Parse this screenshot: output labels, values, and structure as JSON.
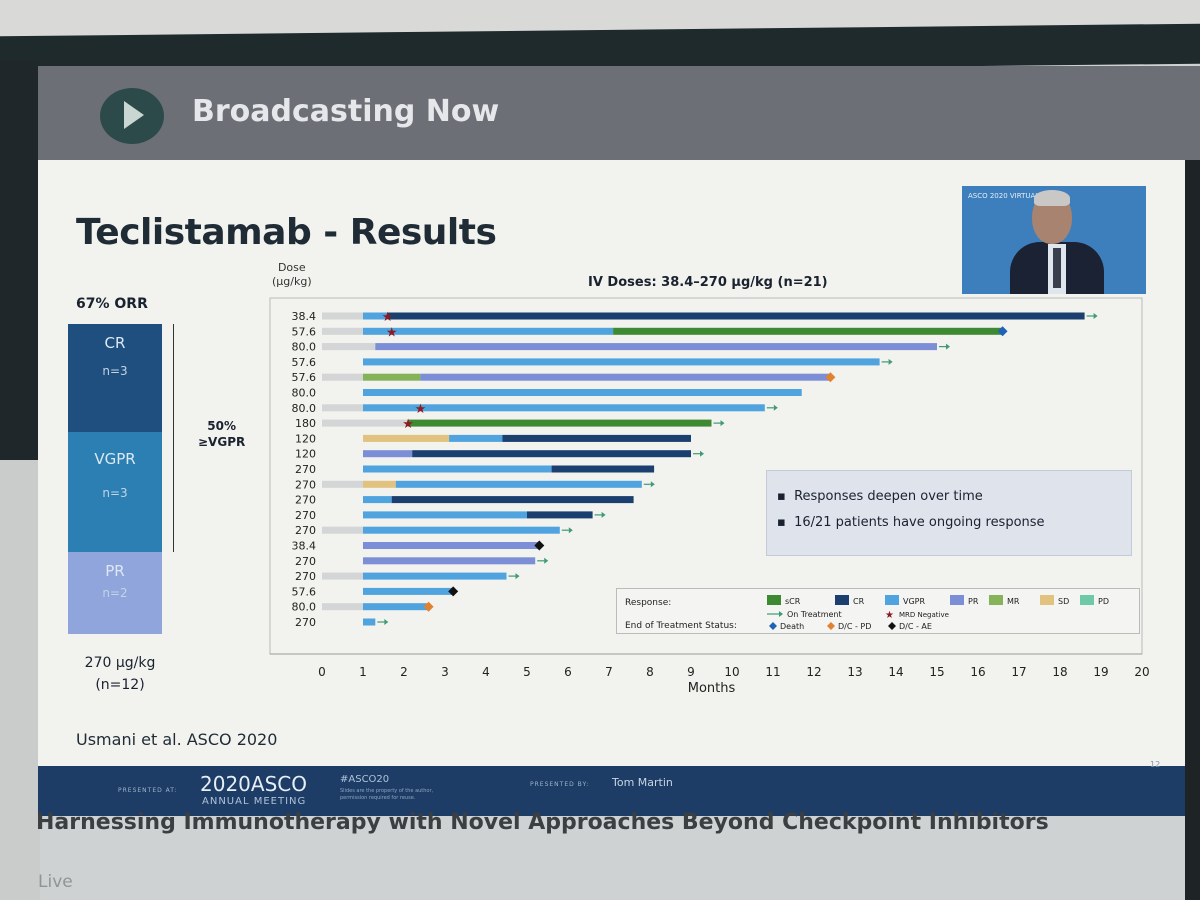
{
  "header": {
    "broadcast_label": "Broadcasting Now"
  },
  "slide": {
    "title": "Teclistamab -  Results",
    "orr": {
      "label": "67% ORR",
      "segments": [
        {
          "label": "CR",
          "n": "n=3"
        },
        {
          "label": "VGPR",
          "n": "n=3"
        },
        {
          "label": "PR",
          "n": "n=2"
        }
      ],
      "vgpr_line1": "50%",
      "vgpr_line2": "≥VGPR",
      "dose_line1": "270 µg/kg",
      "dose_line2": "(n=12)"
    },
    "chart_header": {
      "dose_line1": "Dose",
      "dose_line2": "(µg/kg)",
      "subtitle": "IV Doses: 38.4–270 µg/kg (n=21)"
    },
    "callout": [
      "Responses deepen over time",
      "16/21 patients have ongoing response"
    ],
    "legend": {
      "response_label": "Response:",
      "end_label": "End of Treatment Status:",
      "response_items": [
        {
          "label": "sCR",
          "color": "#3e8a33"
        },
        {
          "label": "CR",
          "color": "#1b3f6e"
        },
        {
          "label": "VGPR",
          "color": "#4fa3df"
        },
        {
          "label": "PR",
          "color": "#7b8ed6"
        },
        {
          "label": "MR",
          "color": "#86b35a"
        },
        {
          "label": "SD",
          "color": "#e1c27e"
        },
        {
          "label": "PD",
          "color": "#6ec9a8"
        }
      ],
      "on_treatment": "On Treatment",
      "mrd_negative": "MRD Negative",
      "death": "Death",
      "dc_pd": "D/C - PD",
      "dc_ae": "D/C - AE"
    },
    "citation": "Usmani et al. ASCO 2020",
    "presenter_logo": "ASCO 2020 VIRTUAL"
  },
  "chart_data": {
    "type": "swimmer",
    "xlabel": "Months",
    "ylabel": "Dose (µg/kg)",
    "xlim": [
      0,
      20
    ],
    "x_ticks": [
      0,
      1,
      2,
      3,
      4,
      5,
      6,
      7,
      8,
      9,
      10,
      11,
      12,
      13,
      14,
      15,
      16,
      17,
      18,
      19,
      20
    ],
    "rows": [
      {
        "dose": "38.4",
        "segments": [
          [
            "gray",
            0,
            1
          ],
          [
            "VGPR",
            1,
            1.6
          ],
          [
            "CR",
            1.6,
            18.6
          ]
        ],
        "mrd": 1.6,
        "end": "ongoing"
      },
      {
        "dose": "57.6",
        "segments": [
          [
            "gray",
            0,
            1
          ],
          [
            "VGPR",
            1,
            7.1
          ],
          [
            "sCR",
            7.1,
            16.6
          ]
        ],
        "mrd": 1.7,
        "end": "death"
      },
      {
        "dose": "80.0",
        "segments": [
          [
            "gray",
            0,
            1.3
          ],
          [
            "PR",
            1.3,
            15.0
          ]
        ],
        "end": "ongoing"
      },
      {
        "dose": "57.6",
        "segments": [
          [
            "VGPR",
            1,
            13.6
          ]
        ],
        "end": "ongoing"
      },
      {
        "dose": "57.6",
        "segments": [
          [
            "gray",
            0,
            1
          ],
          [
            "MR",
            1,
            2.4
          ],
          [
            "PR",
            2.4,
            12.4
          ]
        ],
        "end": "dc_pd"
      },
      {
        "dose": "80.0",
        "segments": [
          [
            "VGPR",
            1,
            11.7
          ]
        ],
        "end": "none"
      },
      {
        "dose": "80.0",
        "segments": [
          [
            "gray",
            0,
            1
          ],
          [
            "VGPR",
            1,
            10.8
          ]
        ],
        "mrd": 2.4,
        "end": "ongoing"
      },
      {
        "dose": "180",
        "segments": [
          [
            "gray",
            0,
            2.1
          ],
          [
            "sCR",
            2.1,
            9.5
          ]
        ],
        "mrd": 2.1,
        "end": "ongoing"
      },
      {
        "dose": "120",
        "segments": [
          [
            "SD",
            1,
            3.1
          ],
          [
            "VGPR",
            3.1,
            4.4
          ],
          [
            "CR",
            4.4,
            9.0
          ]
        ],
        "end": "none"
      },
      {
        "dose": "120",
        "segments": [
          [
            "PR",
            1,
            2.2
          ],
          [
            "CR",
            2.2,
            9.0
          ]
        ],
        "end": "ongoing"
      },
      {
        "dose": "270",
        "segments": [
          [
            "VGPR",
            1,
            5.6
          ],
          [
            "CR",
            5.6,
            8.1
          ]
        ],
        "end": "none"
      },
      {
        "dose": "270",
        "segments": [
          [
            "gray",
            0,
            1
          ],
          [
            "SD",
            1,
            1.8
          ],
          [
            "VGPR",
            1.8,
            7.8
          ]
        ],
        "end": "ongoing"
      },
      {
        "dose": "270",
        "segments": [
          [
            "VGPR",
            1,
            1.7
          ],
          [
            "CR",
            1.7,
            7.6
          ]
        ],
        "end": "none"
      },
      {
        "dose": "270",
        "segments": [
          [
            "VGPR",
            1,
            5.0
          ],
          [
            "CR",
            5.0,
            6.6
          ]
        ],
        "end": "ongoing"
      },
      {
        "dose": "270",
        "segments": [
          [
            "gray",
            0,
            1
          ],
          [
            "VGPR",
            1,
            5.8
          ]
        ],
        "end": "ongoing"
      },
      {
        "dose": "38.4",
        "segments": [
          [
            "PR",
            1,
            5.3
          ]
        ],
        "end": "dc_ae"
      },
      {
        "dose": "270",
        "segments": [
          [
            "PR",
            1,
            5.2
          ]
        ],
        "end": "ongoing"
      },
      {
        "dose": "270",
        "segments": [
          [
            "gray",
            0,
            1
          ],
          [
            "VGPR",
            1,
            4.5
          ]
        ],
        "end": "ongoing"
      },
      {
        "dose": "57.6",
        "segments": [
          [
            "VGPR",
            1,
            3.2
          ]
        ],
        "end": "dc_ae"
      },
      {
        "dose": "80.0",
        "segments": [
          [
            "gray",
            0,
            1
          ],
          [
            "VGPR",
            1,
            2.6
          ]
        ],
        "end": "dc_pd"
      },
      {
        "dose": "270",
        "segments": [
          [
            "VGPR",
            1,
            1.3
          ]
        ],
        "end": "ongoing"
      }
    ]
  },
  "footer": {
    "presented_at": "PRESENTED AT:",
    "year": "2020ASCO",
    "meeting": "ANNUAL MEETING",
    "hashtag": "#ASCO20",
    "note": "Slides are the property of the author, permission required for reuse.",
    "presented_by": "PRESENTED BY:",
    "presenter": "Tom Martin",
    "page": "12"
  },
  "session": {
    "title": "Harnessing Immunotherapy with Novel Approaches Beyond Checkpoint Inhibitors",
    "status": "Live"
  }
}
